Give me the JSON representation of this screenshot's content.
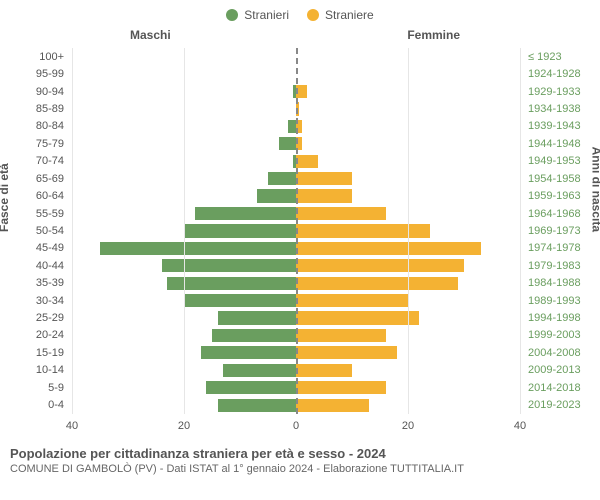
{
  "legend": {
    "male_label": "Stranieri",
    "female_label": "Straniere",
    "male_color": "#6a9e5f",
    "female_color": "#f4b233"
  },
  "panel_titles": {
    "left": "Maschi",
    "right": "Femmine"
  },
  "y_axis_labels": {
    "left": "Fasce di età",
    "right": "Anni di nascita"
  },
  "x_axis": {
    "max": 40,
    "ticks": [
      0,
      20,
      40
    ]
  },
  "grid_color": "#e6e6e6",
  "center_dash_color": "#888888",
  "birth_label_color": "#6a9e5f",
  "age_groups": [
    {
      "age": "100+",
      "birth": "≤ 1923",
      "male": 0,
      "female": 0
    },
    {
      "age": "95-99",
      "birth": "1924-1928",
      "male": 0,
      "female": 0
    },
    {
      "age": "90-94",
      "birth": "1929-1933",
      "male": 0.5,
      "female": 2
    },
    {
      "age": "85-89",
      "birth": "1934-1938",
      "male": 0,
      "female": 0.5
    },
    {
      "age": "80-84",
      "birth": "1939-1943",
      "male": 1.5,
      "female": 1
    },
    {
      "age": "75-79",
      "birth": "1944-1948",
      "male": 3,
      "female": 1
    },
    {
      "age": "70-74",
      "birth": "1949-1953",
      "male": 0.5,
      "female": 4
    },
    {
      "age": "65-69",
      "birth": "1954-1958",
      "male": 5,
      "female": 10
    },
    {
      "age": "60-64",
      "birth": "1959-1963",
      "male": 7,
      "female": 10
    },
    {
      "age": "55-59",
      "birth": "1964-1968",
      "male": 18,
      "female": 16
    },
    {
      "age": "50-54",
      "birth": "1969-1973",
      "male": 20,
      "female": 24
    },
    {
      "age": "45-49",
      "birth": "1974-1978",
      "male": 35,
      "female": 33
    },
    {
      "age": "40-44",
      "birth": "1979-1983",
      "male": 24,
      "female": 30
    },
    {
      "age": "35-39",
      "birth": "1984-1988",
      "male": 23,
      "female": 29
    },
    {
      "age": "30-34",
      "birth": "1989-1993",
      "male": 20,
      "female": 20
    },
    {
      "age": "25-29",
      "birth": "1994-1998",
      "male": 14,
      "female": 22
    },
    {
      "age": "20-24",
      "birth": "1999-2003",
      "male": 15,
      "female": 16
    },
    {
      "age": "15-19",
      "birth": "2004-2008",
      "male": 17,
      "female": 18
    },
    {
      "age": "10-14",
      "birth": "2009-2013",
      "male": 13,
      "female": 10
    },
    {
      "age": "5-9",
      "birth": "2014-2018",
      "male": 16,
      "female": 16
    },
    {
      "age": "0-4",
      "birth": "2019-2023",
      "male": 14,
      "female": 13
    }
  ],
  "footer": {
    "title": "Popolazione per cittadinanza straniera per età e sesso - 2024",
    "subtitle": "COMUNE DI GAMBOLÒ (PV) - Dati ISTAT al 1° gennaio 2024 - Elaborazione TUTTITALIA.IT"
  },
  "font_sizes": {
    "legend": 12,
    "panel_title": 12,
    "axis_label": 12,
    "tick": 11,
    "row_label": 11,
    "footer_title": 13,
    "footer_sub": 11
  }
}
